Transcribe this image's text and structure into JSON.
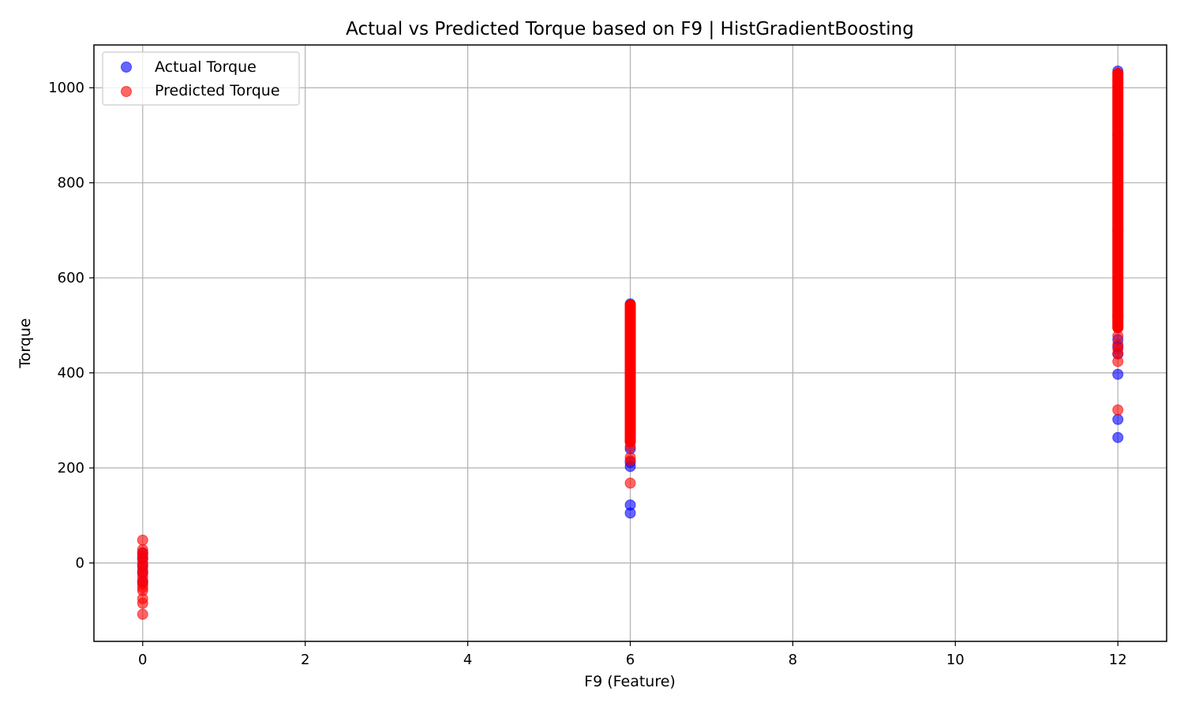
{
  "chart_data": {
    "type": "scatter",
    "title": "Actual vs Predicted Torque based on F9 | HistGradientBoosting",
    "xlabel": "F9 (Feature)",
    "ylabel": "Torque",
    "xlim": [
      -0.6,
      12.6
    ],
    "ylim": [
      -165,
      1090
    ],
    "xticks": [
      0,
      2,
      4,
      6,
      8,
      10,
      12
    ],
    "yticks": [
      0,
      200,
      400,
      600,
      800,
      1000
    ],
    "grid": true,
    "legend_position": "upper-left",
    "series": [
      {
        "name": "Actual Torque",
        "color": "#0000ff",
        "alpha": 0.6,
        "points": [
          {
            "x": 0,
            "y": -40
          },
          {
            "x": 0,
            "y": -20
          },
          {
            "x": 0,
            "y": -5
          },
          {
            "x": 0,
            "y": 10
          },
          {
            "x": 0,
            "y": 20
          },
          {
            "x": 6,
            "y": 105
          },
          {
            "x": 6,
            "y": 122
          },
          {
            "x": 6,
            "y": 203
          },
          {
            "x": 6,
            "y": 212
          },
          {
            "x": 6,
            "y": 240
          },
          {
            "x": 6,
            "y": 300
          },
          {
            "x": 6,
            "y": 380
          },
          {
            "x": 6,
            "y": 460
          },
          {
            "x": 6,
            "y": 540
          },
          {
            "x": 6,
            "y": 545
          },
          {
            "x": 12,
            "y": 264
          },
          {
            "x": 12,
            "y": 302
          },
          {
            "x": 12,
            "y": 397
          },
          {
            "x": 12,
            "y": 440
          },
          {
            "x": 12,
            "y": 455
          },
          {
            "x": 12,
            "y": 470
          },
          {
            "x": 12,
            "y": 520
          },
          {
            "x": 12,
            "y": 700
          },
          {
            "x": 12,
            "y": 900
          },
          {
            "x": 12,
            "y": 1035
          }
        ]
      },
      {
        "name": "Predicted Torque",
        "color": "#ff0000",
        "alpha": 0.6,
        "points": [
          {
            "x": 0,
            "y": -108
          },
          {
            "x": 0,
            "y": -85
          },
          {
            "x": 0,
            "y": -75
          },
          {
            "x": 0,
            "y": -58
          },
          {
            "x": 0,
            "y": -52
          },
          {
            "x": 0,
            "y": -45
          },
          {
            "x": 0,
            "y": -38
          },
          {
            "x": 0,
            "y": -30
          },
          {
            "x": 0,
            "y": -22
          },
          {
            "x": 0,
            "y": -15
          },
          {
            "x": 0,
            "y": -8
          },
          {
            "x": 0,
            "y": 0
          },
          {
            "x": 0,
            "y": 8
          },
          {
            "x": 0,
            "y": 15
          },
          {
            "x": 0,
            "y": 22
          },
          {
            "x": 0,
            "y": 28
          },
          {
            "x": 0,
            "y": 48
          },
          {
            "x": 6,
            "y": 168
          },
          {
            "x": 6,
            "y": 215
          },
          {
            "x": 6,
            "y": 222
          },
          {
            "x": 6,
            "y": 245
          },
          {
            "x": 12,
            "y": 322
          },
          {
            "x": 12,
            "y": 424
          },
          {
            "x": 12,
            "y": 440
          },
          {
            "x": 12,
            "y": 450
          },
          {
            "x": 12,
            "y": 460
          },
          {
            "x": 12,
            "y": 478
          }
        ],
        "bands": [
          {
            "x": 6,
            "y_min": 255,
            "y_max": 543
          },
          {
            "x": 12,
            "y_min": 495,
            "y_max": 1030
          }
        ]
      }
    ]
  }
}
